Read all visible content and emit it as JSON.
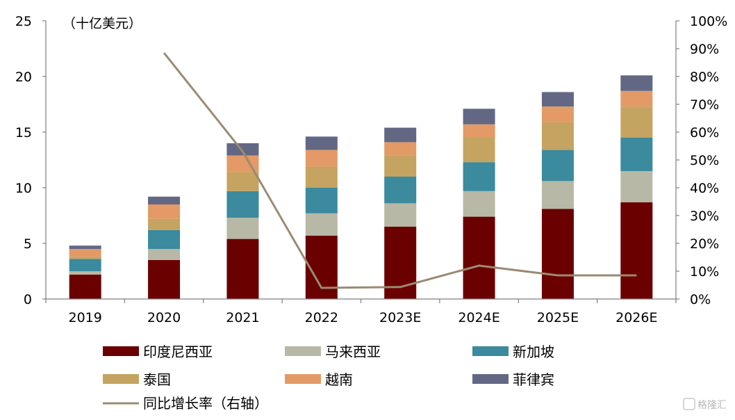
{
  "chart_data": {
    "type": "bar",
    "stacked": true,
    "unit_label": "（十亿美元）",
    "categories": [
      "2019",
      "2020",
      "2021",
      "2022",
      "2023E",
      "2024E",
      "2025E",
      "2026E"
    ],
    "series": [
      {
        "name": "印度尼西亚",
        "color": "#6b0000",
        "values": [
          2.2,
          3.5,
          5.4,
          5.7,
          6.5,
          7.4,
          8.1,
          8.7
        ]
      },
      {
        "name": "马来西亚",
        "color": "#b8b8a6",
        "values": [
          0.3,
          1.0,
          1.9,
          2.0,
          2.1,
          2.3,
          2.5,
          2.8
        ]
      },
      {
        "name": "新加坡",
        "color": "#3b8a9e",
        "values": [
          1.1,
          1.7,
          2.4,
          2.3,
          2.4,
          2.6,
          2.8,
          3.0
        ]
      },
      {
        "name": "泰国",
        "color": "#c4a460",
        "values": [
          0.2,
          1.0,
          1.7,
          1.9,
          1.9,
          2.2,
          2.5,
          2.8
        ]
      },
      {
        "name": "越南",
        "color": "#e39a66",
        "values": [
          0.7,
          1.3,
          1.5,
          1.5,
          1.2,
          1.2,
          1.4,
          1.4
        ]
      },
      {
        "name": "菲律宾",
        "color": "#626884",
        "values": [
          0.3,
          0.7,
          1.1,
          1.2,
          1.3,
          1.4,
          1.3,
          1.4
        ]
      }
    ],
    "line_series": {
      "name": "同比增长率（右轴）",
      "color": "#9b8a72",
      "axis": "right",
      "values": [
        null,
        88.5,
        53,
        4,
        4.3,
        12,
        8.5,
        8.5
      ]
    },
    "left_axis": {
      "min": 0,
      "max": 25,
      "ticks": [
        "0",
        "5",
        "10",
        "15",
        "20",
        "25"
      ]
    },
    "right_axis": {
      "min": 0,
      "max": 100,
      "ticks": [
        "0%",
        "10%",
        "20%",
        "30%",
        "40%",
        "50%",
        "60%",
        "70%",
        "80%",
        "90%",
        "100%"
      ]
    },
    "legend_position": "bottom",
    "grid": false
  },
  "watermark": "格隆汇"
}
